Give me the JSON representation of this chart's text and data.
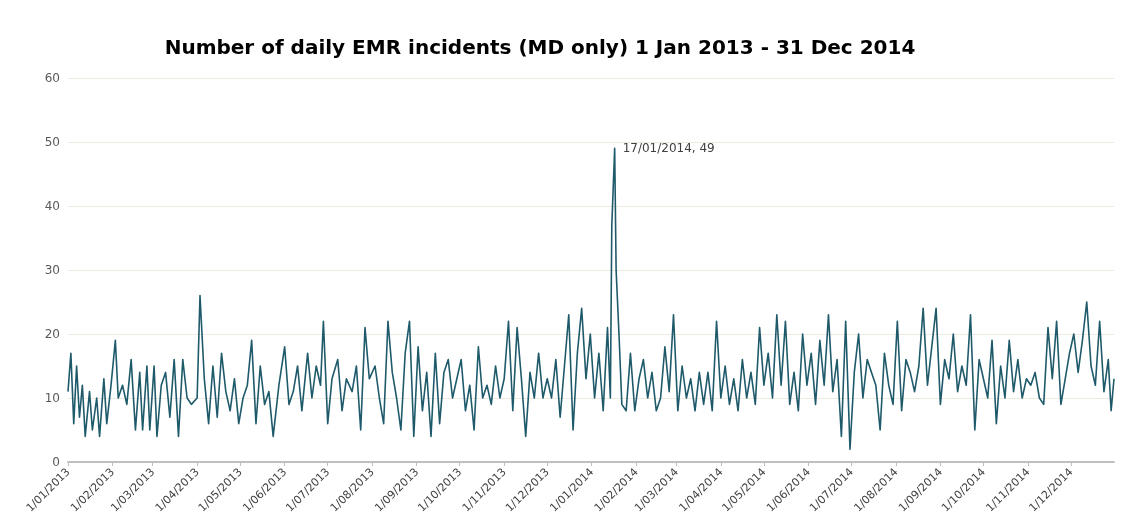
{
  "chart_data": {
    "type": "line",
    "title": "Number of daily EMR incidents (MD only) 1 Jan 2013 - 31 Dec 2014",
    "x": [
      "2013-01-01",
      "2013-01-03",
      "2013-01-05",
      "2013-01-07",
      "2013-01-09",
      "2013-01-11",
      "2013-01-13",
      "2013-01-16",
      "2013-01-18",
      "2013-01-21",
      "2013-01-23",
      "2013-01-26",
      "2013-01-28",
      "2013-01-31",
      "2013-02-03",
      "2013-02-05",
      "2013-02-08",
      "2013-02-11",
      "2013-02-14",
      "2013-02-17",
      "2013-02-20",
      "2013-02-22",
      "2013-02-25",
      "2013-02-27",
      "2013-03-02",
      "2013-03-04",
      "2013-03-07",
      "2013-03-10",
      "2013-03-13",
      "2013-03-16",
      "2013-03-19",
      "2013-03-22",
      "2013-03-25",
      "2013-03-28",
      "2013-04-01",
      "2013-04-03",
      "2013-04-06",
      "2013-04-09",
      "2013-04-12",
      "2013-04-15",
      "2013-04-18",
      "2013-04-21",
      "2013-04-24",
      "2013-04-27",
      "2013-04-30",
      "2013-05-03",
      "2013-05-06",
      "2013-05-09",
      "2013-05-12",
      "2013-05-15",
      "2013-05-18",
      "2013-05-21",
      "2013-05-24",
      "2013-05-28",
      "2013-06-01",
      "2013-06-04",
      "2013-06-07",
      "2013-06-10",
      "2013-06-13",
      "2013-06-17",
      "2013-06-20",
      "2013-06-23",
      "2013-06-26",
      "2013-06-28",
      "2013-07-01",
      "2013-07-04",
      "2013-07-08",
      "2013-07-11",
      "2013-07-14",
      "2013-07-18",
      "2013-07-21",
      "2013-07-24",
      "2013-07-27",
      "2013-07-30",
      "2013-08-03",
      "2013-08-06",
      "2013-08-09",
      "2013-08-12",
      "2013-08-15",
      "2013-08-18",
      "2013-08-21",
      "2013-08-24",
      "2013-08-27",
      "2013-08-30",
      "2013-09-02",
      "2013-09-05",
      "2013-09-08",
      "2013-09-11",
      "2013-09-14",
      "2013-09-17",
      "2013-09-20",
      "2013-09-23",
      "2013-09-26",
      "2013-09-29",
      "2013-10-02",
      "2013-10-05",
      "2013-10-08",
      "2013-10-11",
      "2013-10-14",
      "2013-10-17",
      "2013-10-20",
      "2013-10-23",
      "2013-10-26",
      "2013-10-29",
      "2013-11-01",
      "2013-11-04",
      "2013-11-07",
      "2013-11-10",
      "2013-11-13",
      "2013-11-16",
      "2013-11-19",
      "2013-11-22",
      "2013-11-25",
      "2013-11-28",
      "2013-12-01",
      "2013-12-04",
      "2013-12-07",
      "2013-12-10",
      "2013-12-13",
      "2013-12-16",
      "2013-12-19",
      "2013-12-22",
      "2013-12-25",
      "2013-12-28",
      "2013-12-31",
      "2014-01-03",
      "2014-01-06",
      "2014-01-09",
      "2014-01-12",
      "2014-01-14",
      "2014-01-15",
      "2014-01-17",
      "2014-01-18",
      "2014-01-20",
      "2014-01-22",
      "2014-01-25",
      "2014-01-28",
      "2014-01-31",
      "2014-02-03",
      "2014-02-06",
      "2014-02-09",
      "2014-02-12",
      "2014-02-15",
      "2014-02-18",
      "2014-02-21",
      "2014-02-24",
      "2014-02-27",
      "2014-03-02",
      "2014-03-05",
      "2014-03-08",
      "2014-03-11",
      "2014-03-14",
      "2014-03-17",
      "2014-03-20",
      "2014-03-23",
      "2014-03-26",
      "2014-03-29",
      "2014-04-01",
      "2014-04-04",
      "2014-04-07",
      "2014-04-10",
      "2014-04-13",
      "2014-04-16",
      "2014-04-19",
      "2014-04-22",
      "2014-04-25",
      "2014-04-28",
      "2014-05-01",
      "2014-05-04",
      "2014-05-07",
      "2014-05-10",
      "2014-05-13",
      "2014-05-16",
      "2014-05-19",
      "2014-05-22",
      "2014-05-25",
      "2014-05-28",
      "2014-05-31",
      "2014-06-03",
      "2014-06-06",
      "2014-06-09",
      "2014-06-12",
      "2014-06-15",
      "2014-06-18",
      "2014-06-21",
      "2014-06-24",
      "2014-06-27",
      "2014-06-30",
      "2014-07-03",
      "2014-07-06",
      "2014-07-09",
      "2014-07-12",
      "2014-07-15",
      "2014-07-18",
      "2014-07-21",
      "2014-07-24",
      "2014-07-27",
      "2014-07-30",
      "2014-08-02",
      "2014-08-05",
      "2014-08-08",
      "2014-08-11",
      "2014-08-14",
      "2014-08-17",
      "2014-08-20",
      "2014-08-23",
      "2014-08-26",
      "2014-08-29",
      "2014-09-01",
      "2014-09-04",
      "2014-09-07",
      "2014-09-10",
      "2014-09-13",
      "2014-09-16",
      "2014-09-19",
      "2014-09-22",
      "2014-09-25",
      "2014-09-28",
      "2014-10-01",
      "2014-10-04",
      "2014-10-07",
      "2014-10-10",
      "2014-10-13",
      "2014-10-16",
      "2014-10-19",
      "2014-10-22",
      "2014-10-25",
      "2014-10-28",
      "2014-10-31",
      "2014-11-03",
      "2014-11-06",
      "2014-11-09",
      "2014-11-12",
      "2014-11-15",
      "2014-11-18",
      "2014-11-21",
      "2014-11-24",
      "2014-11-27",
      "2014-11-30",
      "2014-12-03",
      "2014-12-06",
      "2014-12-09",
      "2014-12-12",
      "2014-12-15",
      "2014-12-18",
      "2014-12-21",
      "2014-12-24",
      "2014-12-27",
      "2014-12-29",
      "2014-12-31"
    ],
    "series": [
      {
        "color": "#1f5a6b",
        "values": [
          11,
          17,
          6,
          15,
          7,
          12,
          4,
          11,
          5,
          10,
          4,
          13,
          6,
          12,
          19,
          10,
          12,
          9,
          16,
          5,
          14,
          5,
          15,
          5,
          15,
          4,
          12,
          14,
          7,
          16,
          4,
          16,
          10,
          9,
          10,
          26,
          13,
          6,
          15,
          7,
          17,
          11,
          8,
          13,
          6,
          10,
          12,
          19,
          6,
          15,
          9,
          11,
          4,
          12,
          18,
          9,
          11,
          15,
          8,
          17,
          10,
          15,
          12,
          22,
          6,
          13,
          16,
          8,
          13,
          11,
          15,
          5,
          21,
          13,
          15,
          10,
          6,
          22,
          14,
          10,
          5,
          17,
          22,
          4,
          18,
          8,
          14,
          4,
          17,
          6,
          14,
          16,
          10,
          13,
          16,
          8,
          12,
          5,
          18,
          10,
          12,
          9,
          15,
          10,
          13,
          22,
          8,
          21,
          13,
          4,
          14,
          10,
          17,
          10,
          13,
          10,
          16,
          7,
          15,
          23,
          5,
          17,
          24,
          13,
          20,
          10,
          17,
          8,
          21,
          10,
          37,
          49,
          30,
          20,
          9,
          8,
          17,
          8,
          13,
          16,
          10,
          14,
          8,
          10,
          18,
          11,
          23,
          8,
          15,
          10,
          13,
          8,
          14,
          9,
          14,
          8,
          22,
          10,
          15,
          9,
          13,
          8,
          16,
          10,
          14,
          9,
          21,
          12,
          17,
          10,
          23,
          12,
          22,
          9,
          14,
          8,
          20,
          12,
          17,
          9,
          19,
          12,
          23,
          11,
          16,
          4,
          22,
          2,
          14,
          20,
          10,
          16,
          14,
          12,
          5,
          17,
          12,
          9,
          22,
          8,
          16,
          14,
          11,
          15,
          24,
          12,
          18,
          24,
          9,
          16,
          13,
          20,
          11,
          15,
          12,
          23,
          5,
          16,
          13,
          10,
          19,
          6,
          15,
          10,
          19,
          11,
          16,
          10,
          13,
          12,
          14,
          10,
          9,
          21,
          13,
          22,
          9,
          13,
          17,
          20,
          14,
          19,
          25,
          15,
          12,
          22,
          11,
          16,
          8,
          13
        ]
      }
    ],
    "xlim": [
      "2013-01-01",
      "2014-12-31"
    ],
    "xticks": [
      {
        "value": "2013-01-01",
        "label": "1/01/2013"
      },
      {
        "value": "2013-02-01",
        "label": "1/02/2013"
      },
      {
        "value": "2013-03-01",
        "label": "1/03/2013"
      },
      {
        "value": "2013-04-01",
        "label": "1/04/2013"
      },
      {
        "value": "2013-05-01",
        "label": "1/05/2013"
      },
      {
        "value": "2013-06-01",
        "label": "1/06/2013"
      },
      {
        "value": "2013-07-01",
        "label": "1/07/2013"
      },
      {
        "value": "2013-08-01",
        "label": "1/08/2013"
      },
      {
        "value": "2013-09-01",
        "label": "1/09/2013"
      },
      {
        "value": "2013-10-01",
        "label": "1/10/2013"
      },
      {
        "value": "2013-11-01",
        "label": "1/11/2013"
      },
      {
        "value": "2013-12-01",
        "label": "1/12/2013"
      },
      {
        "value": "2014-01-01",
        "label": "1/01/2014"
      },
      {
        "value": "2014-02-01",
        "label": "1/02/2014"
      },
      {
        "value": "2014-03-01",
        "label": "1/03/2014"
      },
      {
        "value": "2014-04-01",
        "label": "1/04/2014"
      },
      {
        "value": "2014-05-01",
        "label": "1/05/2014"
      },
      {
        "value": "2014-06-01",
        "label": "1/06/2014"
      },
      {
        "value": "2014-07-01",
        "label": "1/07/2014"
      },
      {
        "value": "2014-08-01",
        "label": "1/08/2014"
      },
      {
        "value": "2014-09-01",
        "label": "1/09/2014"
      },
      {
        "value": "2014-10-01",
        "label": "1/10/2014"
      },
      {
        "value": "2014-11-01",
        "label": "1/11/2014"
      },
      {
        "value": "2014-12-01",
        "label": "1/12/2014"
      }
    ],
    "ylim": [
      0,
      60
    ],
    "yticks": [
      0,
      10,
      20,
      30,
      40,
      50,
      60
    ],
    "grid": "y",
    "annotations": [
      {
        "text": "17/01/2014, 49",
        "x": "2014-01-17",
        "y": 49
      }
    ]
  }
}
